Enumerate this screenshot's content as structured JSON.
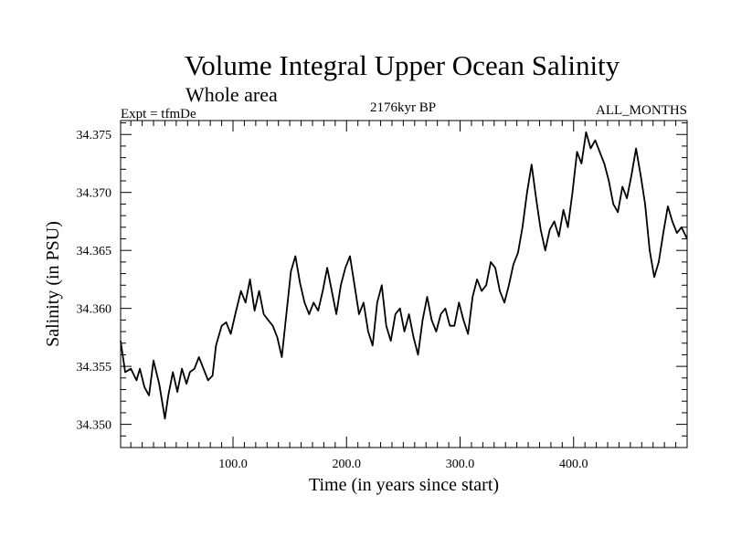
{
  "chart_data": {
    "type": "line",
    "title": "Volume Integral Upper Ocean Salinity",
    "subtitle": "Whole area",
    "experiment_label": "Expt = tfmDe",
    "period_label": "2176kyr BP",
    "months_label": "ALL_MONTHS",
    "xlabel": "Time (in years since start)",
    "ylabel": "Salinity (in PSU)",
    "xlim": [
      1,
      500
    ],
    "ylim": [
      34.348,
      34.3762
    ],
    "x_ticks": [
      100,
      200,
      300,
      400
    ],
    "x_tick_labels": [
      "100.0",
      "200.0",
      "300.0",
      "400.0"
    ],
    "y_ticks": [
      34.35,
      34.355,
      34.36,
      34.365,
      34.37,
      34.375
    ],
    "y_tick_labels": [
      "34.350",
      "34.355",
      "34.360",
      "34.365",
      "34.370",
      "34.375"
    ],
    "series": [
      {
        "name": "Salinity",
        "x": [
          1,
          5,
          10,
          15,
          18,
          22,
          26,
          30,
          35,
          40,
          43,
          47,
          51,
          55,
          59,
          62,
          66,
          70,
          74,
          78,
          82,
          85,
          90,
          94,
          98,
          102,
          107,
          111,
          115,
          119,
          123,
          127,
          131,
          135,
          139,
          143,
          147,
          151,
          155,
          159,
          163,
          167,
          171,
          175,
          179,
          183,
          187,
          191,
          195,
          199,
          203,
          207,
          211,
          215,
          219,
          223,
          227,
          231,
          235,
          239,
          243,
          247,
          251,
          255,
          259,
          263,
          267,
          271,
          275,
          279,
          283,
          287,
          291,
          295,
          299,
          303,
          307,
          311,
          315,
          319,
          323,
          327,
          331,
          335,
          339,
          343,
          347,
          351,
          355,
          359,
          363,
          367,
          371,
          375,
          379,
          383,
          387,
          391,
          395,
          399,
          403,
          407,
          411,
          415,
          419,
          423,
          427,
          431,
          435,
          439,
          443,
          447,
          451,
          455,
          459,
          463,
          467,
          471,
          475,
          479,
          483,
          487,
          491,
          495,
          500
        ],
        "values": [
          34.3572,
          34.3545,
          34.3548,
          34.3538,
          34.3548,
          34.3532,
          34.3525,
          34.3555,
          34.3535,
          34.3505,
          34.3525,
          34.3545,
          34.3528,
          34.3548,
          34.3535,
          34.3545,
          34.3548,
          34.3558,
          34.3548,
          34.3538,
          34.3542,
          34.3568,
          34.3585,
          34.3588,
          34.3578,
          34.3595,
          34.3615,
          34.3605,
          34.3625,
          34.3598,
          34.3615,
          34.3595,
          34.359,
          34.3585,
          34.3575,
          34.3558,
          34.3595,
          34.3632,
          34.3645,
          34.3622,
          34.3605,
          34.3595,
          34.3605,
          34.3598,
          34.3615,
          34.3635,
          34.3615,
          34.3595,
          34.362,
          34.3635,
          34.3645,
          34.362,
          34.3595,
          34.3605,
          34.358,
          34.3568,
          34.3605,
          34.362,
          34.3585,
          34.3572,
          34.3595,
          34.36,
          34.358,
          34.3595,
          34.3575,
          34.356,
          34.359,
          34.361,
          34.359,
          34.358,
          34.3595,
          34.36,
          34.3585,
          34.3585,
          34.3605,
          34.359,
          34.3578,
          34.361,
          34.3625,
          34.3615,
          34.362,
          34.364,
          34.3635,
          34.3615,
          34.3605,
          34.362,
          34.3638,
          34.3648,
          34.367,
          34.37,
          34.3724,
          34.3695,
          34.3668,
          34.365,
          34.3668,
          34.3675,
          34.3662,
          34.3685,
          34.367,
          34.37,
          34.3735,
          34.3725,
          34.3752,
          34.3738,
          34.3745,
          34.3735,
          34.3725,
          34.371,
          34.369,
          34.3683,
          34.3705,
          34.3695,
          34.3715,
          34.3738,
          34.3715,
          34.369,
          34.365,
          34.3627,
          34.364,
          34.3665,
          34.3688,
          34.3675,
          34.3665,
          34.367,
          34.366
        ]
      }
    ]
  }
}
